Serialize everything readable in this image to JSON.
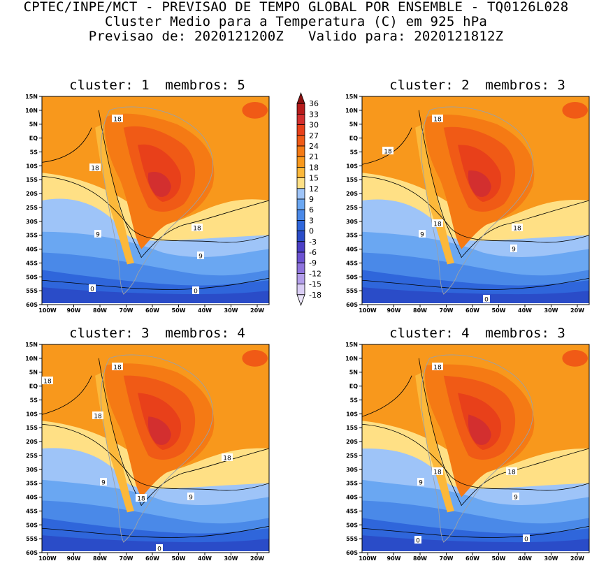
{
  "header": {
    "line1": "CPTEC/INPE/MCT - PREVISAO DE TEMPO GLOBAL POR ENSEMBLE - TQ0126L028",
    "line2": "Cluster Medio para a Temperatura (C) em 925 hPa",
    "line3": "Previsao de: 2020121200Z   Valido para: 2020121812Z"
  },
  "panels": [
    {
      "title": "cluster: 1  membros: 5",
      "contour_labels": [
        "18",
        "18",
        "18",
        "9",
        "9",
        "0",
        "0"
      ]
    },
    {
      "title": "cluster: 2  membros: 3",
      "contour_labels": [
        "18",
        "18",
        "18",
        "18",
        "9",
        "9",
        "0"
      ]
    },
    {
      "title": "cluster: 3  membros: 4",
      "contour_labels": [
        "18",
        "18",
        "18",
        "18",
        "18",
        "9",
        "9",
        "0"
      ]
    },
    {
      "title": "cluster: 4  membros: 3",
      "contour_labels": [
        "18",
        "18",
        "18",
        "9",
        "9",
        "0",
        "0"
      ]
    }
  ],
  "axes": {
    "lat_ticks": [
      "15N",
      "10N",
      "5N",
      "EQ",
      "5S",
      "10S",
      "15S",
      "20S",
      "25S",
      "30S",
      "35S",
      "40S",
      "45S",
      "50S",
      "55S",
      "60S"
    ],
    "lon_ticks": [
      "100W",
      "90W",
      "80W",
      "70W",
      "60W",
      "50W",
      "40W",
      "30W",
      "20W"
    ]
  },
  "colorbar": {
    "levels": [
      "36",
      "33",
      "30",
      "27",
      "24",
      "21",
      "18",
      "15",
      "12",
      "9",
      "6",
      "3",
      "0",
      "-3",
      "-6",
      "-9",
      "-12",
      "-15",
      "-18"
    ],
    "colors": [
      "#8c1111",
      "#b71c1c",
      "#d32f2f",
      "#e8401a",
      "#f05a16",
      "#f57a14",
      "#f8981c",
      "#fcb83a",
      "#ffe085",
      "#9ec4f8",
      "#6aa7f2",
      "#4a89e8",
      "#2f66db",
      "#2a4cc8",
      "#4b3fc6",
      "#6c52d2",
      "#8e73dd",
      "#b39eea",
      "#d9cdf5",
      "#ece6fa"
    ]
  }
}
